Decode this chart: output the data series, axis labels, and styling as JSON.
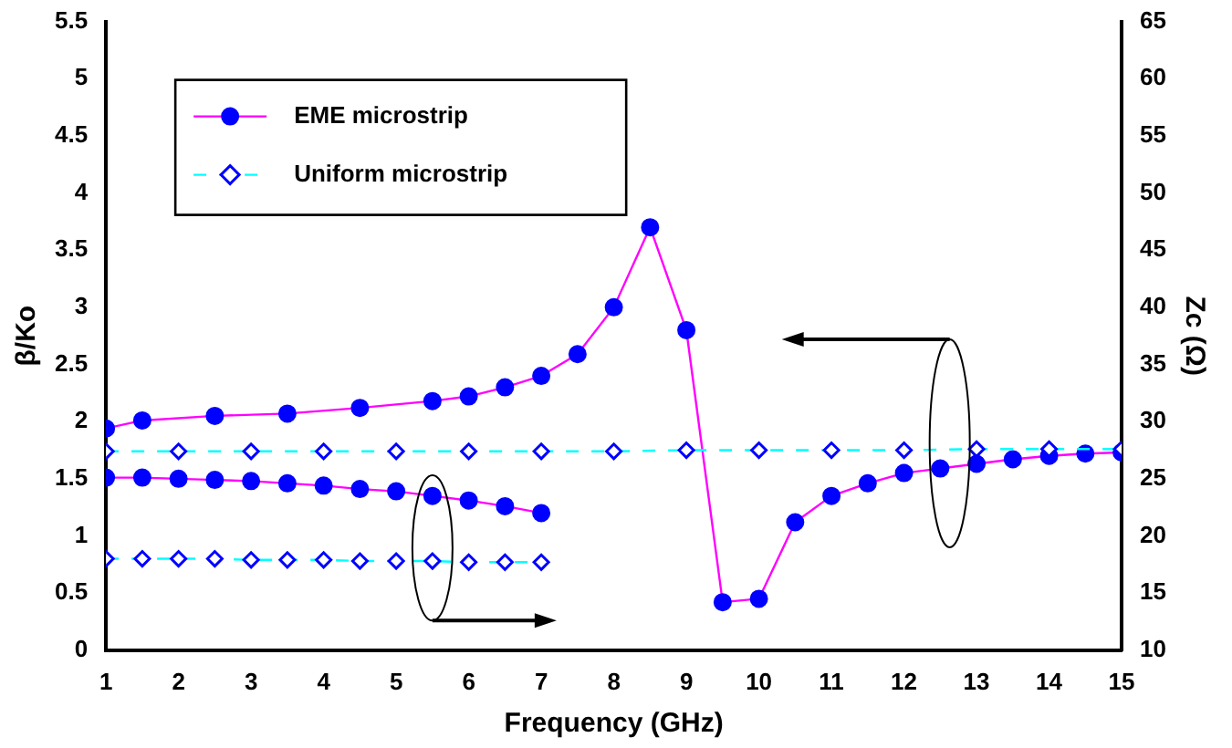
{
  "chart_data": {
    "type": "line",
    "xlabel": "Frequency (GHz)",
    "ylabel": "β/Ko",
    "y2label": "Zc (Ω)",
    "xlim": [
      1,
      15
    ],
    "xticks": [
      1,
      2,
      3,
      4,
      5,
      6,
      7,
      8,
      9,
      10,
      11,
      12,
      13,
      14,
      15
    ],
    "ylim": [
      0,
      5.5
    ],
    "yticks": [
      0,
      0.5,
      1,
      1.5,
      2,
      2.5,
      3,
      3.5,
      4,
      4.5,
      5,
      5.5
    ],
    "y2lim": [
      10,
      65
    ],
    "y2ticks": [
      10,
      15,
      20,
      25,
      30,
      35,
      40,
      45,
      50,
      55,
      60,
      65
    ],
    "grid": false,
    "legend": "top left",
    "series": [
      {
        "name": "EME microstrip",
        "color": "#ff00ff",
        "marker": "circle",
        "line_style": "solid",
        "x": [
          1,
          1.5,
          2.5,
          3.5,
          4.5,
          5.5,
          6,
          6.5,
          7,
          7.5,
          8,
          8.5,
          9,
          9.5,
          10,
          10.5,
          11,
          11.5,
          12,
          12.5,
          13,
          13.5,
          14,
          14.5,
          15
        ],
        "values": [
          1.94,
          2.01,
          2.05,
          2.07,
          2.12,
          2.18,
          2.22,
          2.3,
          2.4,
          2.59,
          3.0,
          3.7,
          2.8,
          0.42,
          0.45,
          1.12,
          1.35,
          1.46,
          1.55,
          1.59,
          1.63,
          1.67,
          1.7,
          1.72,
          1.73
        ]
      },
      {
        "name": "Uniform microstrip",
        "color": "#00ffff",
        "marker": "diamond",
        "line_style": "dashed",
        "x": [
          1,
          2,
          3,
          4,
          5,
          6,
          7,
          8,
          9,
          10,
          11,
          12,
          13,
          14,
          15
        ],
        "values": [
          1.74,
          1.74,
          1.74,
          1.74,
          1.74,
          1.74,
          1.74,
          1.74,
          1.75,
          1.75,
          1.75,
          1.75,
          1.76,
          1.76,
          1.76
        ]
      },
      {
        "color": "#ff00ff",
        "marker": "circle",
        "line_style": "solid",
        "axis": "y2",
        "x": [
          1,
          1.5,
          2,
          2.5,
          3,
          3.5,
          4,
          4.5,
          5,
          5.5,
          6,
          6.5,
          7
        ],
        "values": [
          25.1,
          25.1,
          25.0,
          24.9,
          24.8,
          24.6,
          24.4,
          24.1,
          23.9,
          23.5,
          23.1,
          22.6,
          22.0
        ]
      },
      {
        "color": "#00ffff",
        "marker": "diamond",
        "line_style": "dashed",
        "axis": "y2",
        "x": [
          1,
          1.5,
          2,
          2.5,
          3,
          3.5,
          4,
          4.5,
          5,
          5.5,
          6,
          6.5,
          7
        ],
        "values": [
          18.0,
          18.0,
          18.0,
          18.0,
          17.9,
          17.9,
          17.9,
          17.8,
          17.8,
          17.8,
          17.7,
          17.7,
          17.7
        ]
      }
    ]
  }
}
